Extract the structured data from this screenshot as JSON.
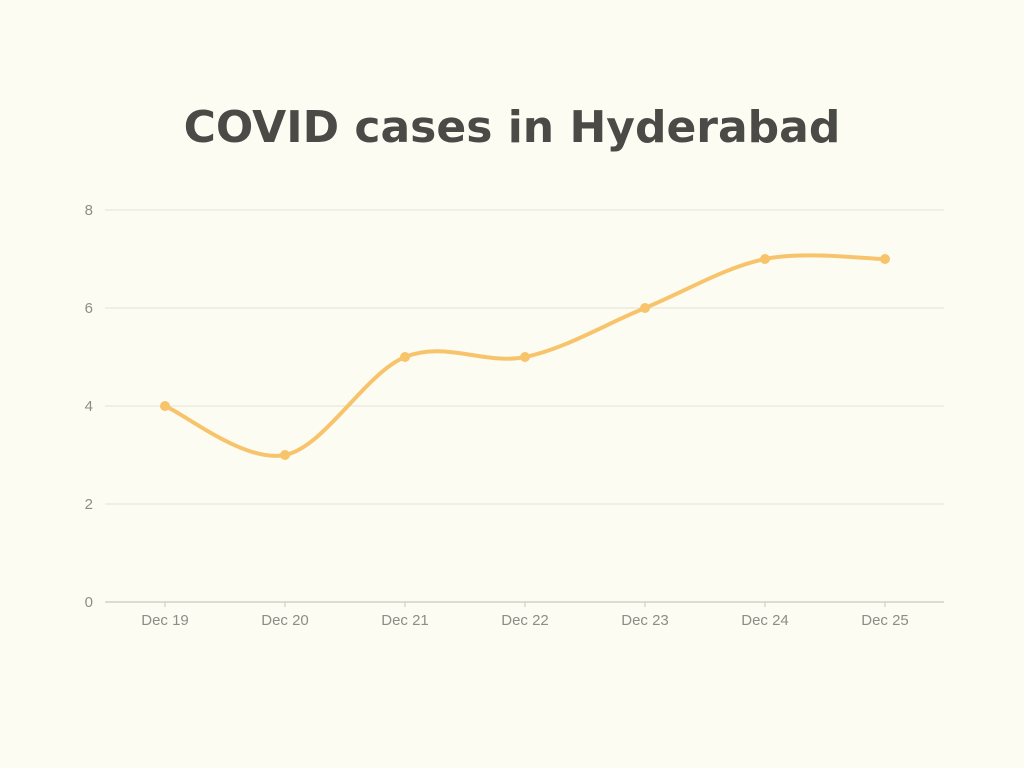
{
  "chart_data": {
    "type": "line",
    "title": "COVID cases in Hyderabad",
    "xlabel": "",
    "ylabel": "",
    "categories": [
      "Dec 19",
      "Dec 20",
      "Dec 21",
      "Dec 22",
      "Dec 23",
      "Dec 24",
      "Dec 25"
    ],
    "series": [
      {
        "values": [
          4,
          3,
          5,
          5,
          6,
          7,
          7
        ]
      }
    ],
    "ylim": [
      0,
      8
    ],
    "yticks": [
      0,
      2,
      4,
      6,
      8
    ],
    "ytick_labels": [
      "0",
      "2",
      "4",
      "6",
      "8"
    ],
    "grid": true,
    "line_smooth": true,
    "colors": {
      "line": "#f7c46c",
      "grid": "#e3e2d9",
      "axis": "#c9c8bf",
      "background": "#fdfcf3"
    }
  }
}
